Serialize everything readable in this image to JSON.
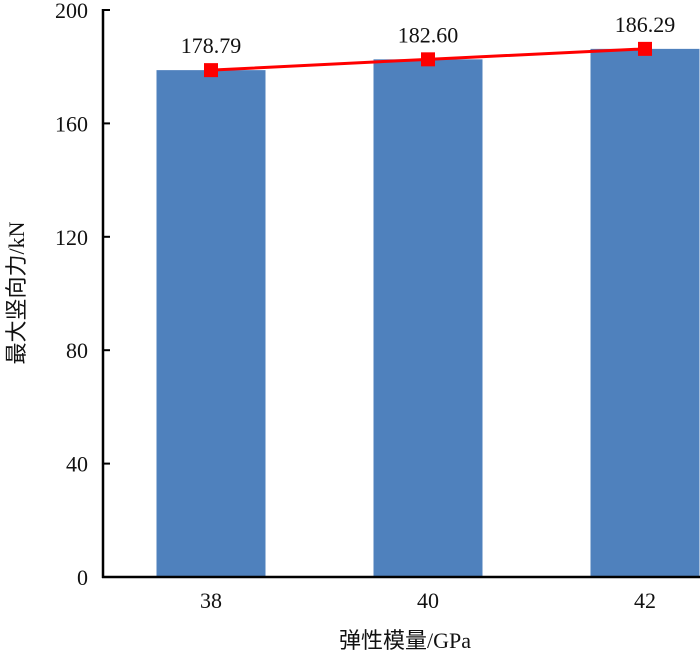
{
  "chart_data": {
    "type": "bar",
    "categories": [
      "38",
      "40",
      "42"
    ],
    "values": [
      178.79,
      182.6,
      186.29
    ],
    "data_labels": [
      "178.79",
      "182.60",
      "186.29"
    ],
    "line_overlay": true,
    "xlabel": "弹性模量/GPa",
    "ylabel": "最大竖向力/kN",
    "ylim": [
      0,
      200
    ],
    "yticks": [
      "0",
      "40",
      "80",
      "120",
      "160",
      "200"
    ],
    "grid": false,
    "colors": {
      "bar": "#4f81bd",
      "line": "#ff0000"
    }
  }
}
